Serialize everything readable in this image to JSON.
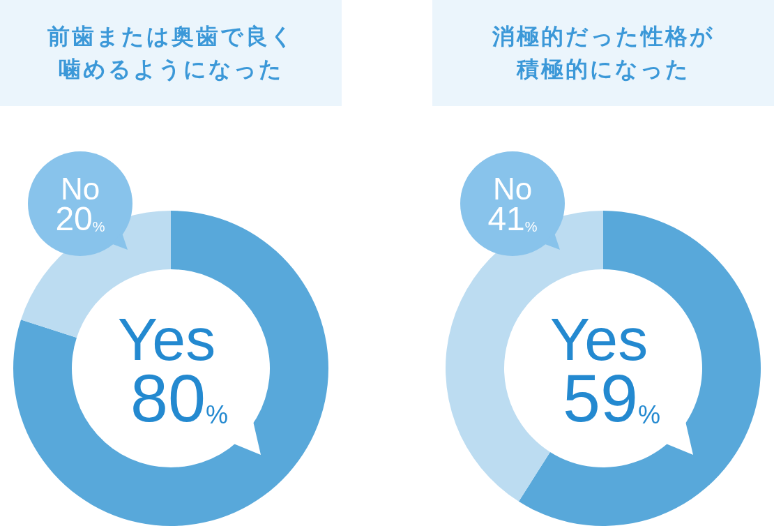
{
  "chart_data": [
    {
      "type": "donut",
      "title": "前歯または奥歯で良く噛めるようになった",
      "categories": [
        "Yes",
        "No"
      ],
      "values": [
        80,
        20
      ],
      "colors": [
        "#58a8da",
        "#bcdcf1"
      ],
      "value_labels": [
        "80%",
        "20%"
      ]
    },
    {
      "type": "donut",
      "title": "消極的だった性格が積極的になった",
      "categories": [
        "Yes",
        "No"
      ],
      "values": [
        59,
        41
      ],
      "colors": [
        "#58a8da",
        "#bcdcf1"
      ],
      "value_labels": [
        "59%",
        "41%"
      ]
    }
  ]
}
